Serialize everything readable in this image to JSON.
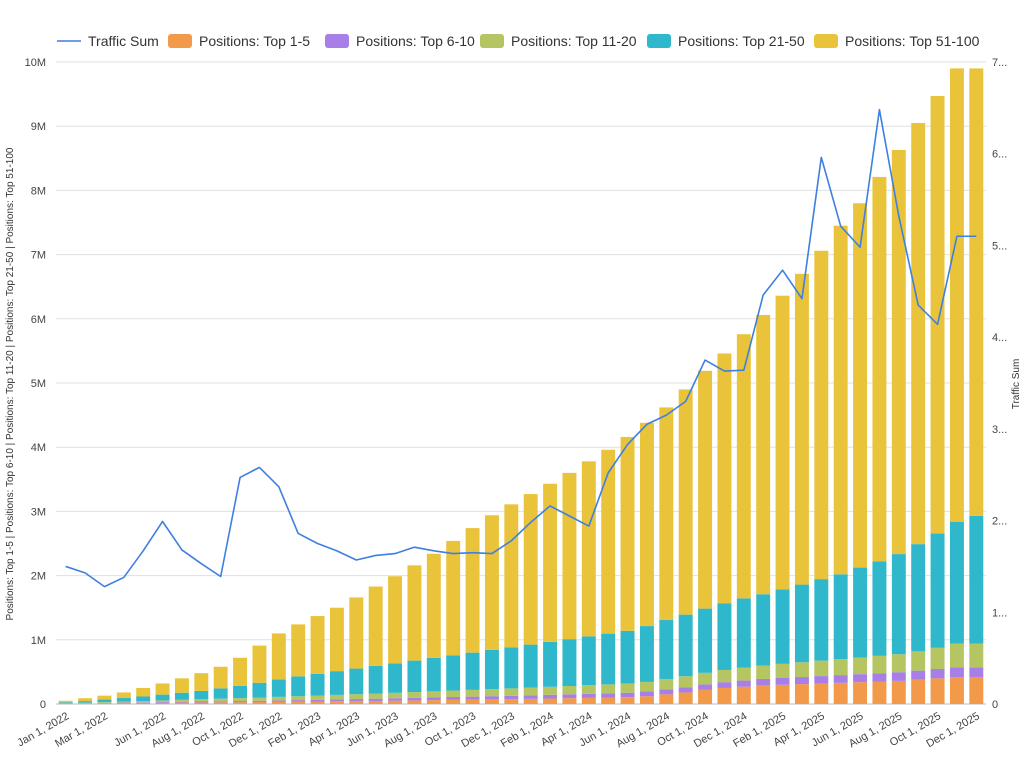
{
  "chart_data": {
    "type": "bar",
    "stacked": true,
    "title": "",
    "ylabel": "Positions: Top 1-5 | Positions: Top 6-10 | Positions: Top 11-20 | Positions: Top 21-50 | Positions: Top 51-100",
    "y2label": "Traffic Sum",
    "ylim": [
      0,
      10000000
    ],
    "y2lim": [
      0,
      7
    ],
    "yticks": [
      "0",
      "1M",
      "2M",
      "3M",
      "4M",
      "5M",
      "6M",
      "7M",
      "8M",
      "9M",
      "10M"
    ],
    "y2ticks": [
      "0",
      "1...",
      "2...",
      "3...",
      "4...",
      "5...",
      "6...",
      "7..."
    ],
    "grid": true,
    "legend_position": "top",
    "categories": [
      "Jan 1, 2022",
      "Feb 1, 2022",
      "Mar 1, 2022",
      "Apr 1, 2022",
      "May 1, 2022",
      "Jun 1, 2022",
      "Jul 1, 2022",
      "Aug 1, 2022",
      "Sep 1, 2022",
      "Oct 1, 2022",
      "Nov 1, 2022",
      "Dec 1, 2022",
      "Jan 1, 2023",
      "Feb 1, 2023",
      "Mar 1, 2023",
      "Apr 1, 2023",
      "May 1, 2023",
      "Jun 1, 2023",
      "Jul 1, 2023",
      "Aug 1, 2023",
      "Sep 1, 2023",
      "Oct 1, 2023",
      "Nov 1, 2023",
      "Dec 1, 2023",
      "Jan 1, 2024",
      "Feb 1, 2024",
      "Mar 1, 2024",
      "Apr 1, 2024",
      "May 1, 2024",
      "Jun 1, 2024",
      "Jul 1, 2024",
      "Aug 1, 2024",
      "Sep 1, 2024",
      "Oct 1, 2024",
      "Nov 1, 2024",
      "Dec 1, 2024",
      "Jan 1, 2025",
      "Feb 1, 2025",
      "Mar 1, 2025",
      "Apr 1, 2025",
      "May 1, 2025",
      "Jun 1, 2025",
      "Jul 1, 2025",
      "Aug 1, 2025",
      "Sep 1, 2025",
      "Oct 1, 2025",
      "Nov 1, 2025",
      "Dec 1, 2025"
    ],
    "xtick_labels": [
      "Jan 1, 2022",
      "Mar 1, 2022",
      "Jun 1, 2022",
      "Aug 1, 2022",
      "Oct 1, 2022",
      "Dec 1, 2022",
      "Feb 1, 2023",
      "Apr 1, 2023",
      "Jun 1, 2023",
      "Aug 1, 2023",
      "Oct 1, 2023",
      "Dec 1, 2023",
      "Feb 1, 2024",
      "Apr 1, 2024",
      "Jun 1, 2024",
      "Aug 1, 2024",
      "Oct 1, 2024",
      "Dec 1, 2024",
      "Feb 1, 2025",
      "Apr 1, 2025",
      "Jun 1, 2025",
      "Aug 1, 2025",
      "Oct 1, 2025",
      "Dec 1, 2025"
    ],
    "bar_totals": [
      50000,
      90000,
      130000,
      180000,
      250000,
      320000,
      400000,
      480000,
      580000,
      720000,
      910000,
      1100000,
      1240000,
      1370000,
      1500000,
      1660000,
      1830000,
      1990000,
      2160000,
      2340000,
      2540000,
      2740000,
      2940000,
      3110000,
      3270000,
      3430000,
      3600000,
      3780000,
      3960000,
      4160000,
      4380000,
      4620000,
      4900000,
      5190000,
      5460000,
      5760000,
      6060000,
      6360000,
      6700000,
      7060000,
      7450000,
      7800000,
      8210000,
      8630000,
      9050000,
      9470000,
      9900000,
      9900000
    ],
    "series": [
      {
        "name": "Positions: Top 1-5",
        "color": "#f2994a",
        "values": [
          5000,
          9000,
          12000,
          15000,
          18000,
          20000,
          22000,
          24000,
          26000,
          28000,
          30000,
          33000,
          36000,
          39000,
          42000,
          45000,
          48000,
          52000,
          56000,
          60000,
          64000,
          68000,
          72000,
          76000,
          80000,
          85000,
          90000,
          95000,
          100000,
          105000,
          120000,
          150000,
          180000,
          220000,
          250000,
          270000,
          290000,
          300000,
          310000,
          320000,
          330000,
          340000,
          350000,
          360000,
          380000,
          400000,
          420000,
          420000
        ]
      },
      {
        "name": "Positions: Top 6-10",
        "color": "#a77fe6",
        "values": [
          2000,
          3000,
          5000,
          7000,
          9000,
          11000,
          13000,
          15000,
          17000,
          19000,
          21000,
          23000,
          25000,
          27000,
          30000,
          32000,
          35000,
          37000,
          40000,
          42000,
          45000,
          47000,
          50000,
          52000,
          55000,
          58000,
          60000,
          63000,
          66000,
          70000,
          74000,
          78000,
          82000,
          86000,
          90000,
          95000,
          100000,
          105000,
          110000,
          115000,
          120000,
          125000,
          130000,
          135000,
          140000,
          145000,
          150000,
          150000
        ]
      },
      {
        "name": "Positions: Top 11-20",
        "color": "#b5c561",
        "values": [
          5000,
          8000,
          12000,
          16000,
          20000,
          25000,
          30000,
          35000,
          40000,
          45000,
          50000,
          55000,
          60000,
          65000,
          70000,
          75000,
          80000,
          85000,
          90000,
          95000,
          100000,
          105000,
          110000,
          115000,
          120000,
          125000,
          130000,
          135000,
          140000,
          145000,
          150000,
          160000,
          170000,
          180000,
          190000,
          200000,
          210000,
          220000,
          230000,
          240000,
          250000,
          260000,
          270000,
          280000,
          300000,
          330000,
          370000,
          370000
        ]
      },
      {
        "name": "Positions: Top 21-50",
        "color": "#2fb7cc",
        "values": [
          15000,
          25000,
          40000,
          55000,
          70000,
          90000,
          110000,
          130000,
          160000,
          190000,
          230000,
          270000,
          310000,
          340000,
          370000,
          400000,
          430000,
          460000,
          490000,
          520000,
          550000,
          580000,
          610000,
          640000,
          670000,
          700000,
          730000,
          760000,
          790000,
          820000,
          870000,
          920000,
          960000,
          1000000,
          1040000,
          1080000,
          1110000,
          1160000,
          1210000,
          1270000,
          1320000,
          1400000,
          1470000,
          1560000,
          1670000,
          1780000,
          1900000,
          1990000
        ]
      },
      {
        "name": "Positions: Top 51-100",
        "color": "#e9c43b",
        "values": [
          23000,
          45000,
          61000,
          87000,
          133000,
          174000,
          225000,
          276000,
          337000,
          438000,
          579000,
          719000,
          809000,
          899000,
          988000,
          1108000,
          1237000,
          1356000,
          1484000,
          1623000,
          1781000,
          1940000,
          2098000,
          2227000,
          2345000,
          2462000,
          2590000,
          2727000,
          2864000,
          3020000,
          3166000,
          3312000,
          3508000,
          3704000,
          3890000,
          4115000,
          4350000,
          4575000,
          4840000,
          5115000,
          5430000,
          5675000,
          5990000,
          6295000,
          6560000,
          6815000,
          7060000,
          6970000
        ]
      }
    ],
    "line_series": {
      "name": "Traffic Sum",
      "color": "#3f7fe0",
      "axis": "right",
      "values": [
        1.5,
        1.43,
        1.28,
        1.38,
        1.67,
        1.99,
        1.68,
        1.53,
        1.39,
        2.47,
        2.58,
        2.37,
        1.86,
        1.75,
        1.67,
        1.57,
        1.62,
        1.64,
        1.71,
        1.67,
        1.64,
        1.65,
        1.64,
        1.78,
        1.98,
        2.16,
        2.05,
        1.94,
        2.52,
        2.83,
        3.05,
        3.15,
        3.3,
        3.75,
        3.63,
        3.64,
        4.46,
        4.73,
        4.42,
        5.96,
        5.21,
        4.98,
        6.48,
        5.32,
        4.35,
        4.14,
        5.1,
        5.1
      ]
    }
  }
}
